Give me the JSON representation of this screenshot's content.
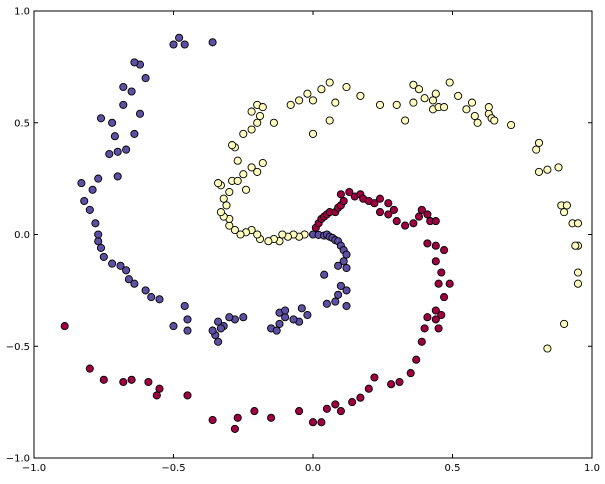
{
  "chart_data": {
    "type": "scatter",
    "title": "",
    "xlabel": "",
    "ylabel": "",
    "xlim": [
      -1.0,
      1.0
    ],
    "ylim": [
      -1.0,
      1.0
    ],
    "xticks": [
      "−1.0",
      "−0.5",
      "0.0",
      "0.5",
      "1.0"
    ],
    "xtick_values": [
      -1.0,
      -0.5,
      0.0,
      0.5,
      1.0
    ],
    "yticks": [
      "−1.0",
      "−0.5",
      "0.0",
      "0.5",
      "1.0"
    ],
    "ytick_values": [
      -1.0,
      -0.5,
      0.0,
      0.5,
      1.0
    ],
    "grid": false,
    "marker_edge_color": "#000000",
    "series": [
      {
        "color": "#5e4fa2",
        "points": [
          [
            0.0,
            0.0
          ],
          [
            0.02,
            -0.002
          ],
          [
            0.04,
            -0.005
          ],
          [
            0.05,
            0.0
          ],
          [
            0.06,
            -0.01
          ],
          [
            0.07,
            -0.015
          ],
          [
            0.08,
            -0.025
          ],
          [
            0.09,
            -0.03
          ],
          [
            0.1,
            -0.05
          ],
          [
            0.11,
            -0.07
          ],
          [
            0.12,
            -0.09
          ],
          [
            0.11,
            -0.12
          ],
          [
            0.12,
            -0.15
          ],
          [
            0.09,
            -0.14
          ],
          [
            0.04,
            -0.18
          ],
          [
            0.1,
            -0.23
          ],
          [
            0.12,
            -0.25
          ],
          [
            0.09,
            -0.27
          ],
          [
            0.08,
            -0.3
          ],
          [
            0.12,
            -0.32
          ],
          [
            0.05,
            -0.31
          ],
          [
            -0.04,
            -0.33
          ],
          [
            -0.02,
            -0.36
          ],
          [
            -0.05,
            -0.39
          ],
          [
            -0.1,
            -0.37
          ],
          [
            -0.12,
            -0.4
          ],
          [
            -0.15,
            -0.42
          ],
          [
            -0.12,
            -0.35
          ],
          [
            -0.1,
            -0.34
          ],
          [
            -0.07,
            -0.38
          ],
          [
            -0.13,
            -0.43
          ],
          [
            -0.25,
            -0.37
          ],
          [
            -0.28,
            -0.38
          ],
          [
            -0.3,
            -0.37
          ],
          [
            -0.32,
            -0.41
          ],
          [
            -0.34,
            -0.39
          ],
          [
            -0.33,
            -0.42
          ],
          [
            -0.35,
            -0.45
          ],
          [
            -0.34,
            -0.48
          ],
          [
            -0.36,
            -0.43
          ],
          [
            -0.45,
            -0.38
          ],
          [
            -0.45,
            -0.43
          ],
          [
            -0.5,
            -0.41
          ],
          [
            -0.46,
            -0.32
          ],
          [
            -0.55,
            -0.29
          ],
          [
            -0.58,
            -0.28
          ],
          [
            -0.6,
            -0.25
          ],
          [
            -0.64,
            -0.22
          ],
          [
            -0.66,
            -0.2
          ],
          [
            -0.67,
            -0.16
          ],
          [
            -0.69,
            -0.14
          ],
          [
            -0.72,
            -0.13
          ],
          [
            -0.75,
            -0.1
          ],
          [
            -0.76,
            -0.06
          ],
          [
            -0.77,
            -0.03
          ],
          [
            -0.77,
            0.0
          ],
          [
            -0.78,
            0.05
          ],
          [
            -0.8,
            0.11
          ],
          [
            -0.82,
            0.15
          ],
          [
            -0.83,
            0.23
          ],
          [
            -0.77,
            0.25
          ],
          [
            -0.79,
            0.2
          ],
          [
            -0.7,
            0.26
          ],
          [
            -0.7,
            0.37
          ],
          [
            -0.73,
            0.36
          ],
          [
            -0.67,
            0.38
          ],
          [
            -0.71,
            0.44
          ],
          [
            -0.64,
            0.45
          ],
          [
            -0.72,
            0.5
          ],
          [
            -0.76,
            0.52
          ],
          [
            -0.62,
            0.54
          ],
          [
            -0.68,
            0.58
          ],
          [
            -0.65,
            0.64
          ],
          [
            -0.6,
            0.7
          ],
          [
            -0.68,
            0.66
          ],
          [
            -0.62,
            0.76
          ],
          [
            -0.64,
            0.77
          ],
          [
            -0.5,
            0.85
          ],
          [
            -0.48,
            0.88
          ],
          [
            -0.46,
            0.85
          ],
          [
            -0.36,
            0.86
          ]
        ]
      },
      {
        "color": "#fefebe",
        "points": [
          [
            -0.03,
            0.0
          ],
          [
            -0.05,
            -0.01
          ],
          [
            -0.07,
            0.0
          ],
          [
            -0.09,
            -0.01
          ],
          [
            -0.11,
            0.0
          ],
          [
            -0.12,
            -0.03
          ],
          [
            -0.14,
            -0.02
          ],
          [
            -0.16,
            -0.03
          ],
          [
            -0.19,
            -0.02
          ],
          [
            -0.2,
            0.0
          ],
          [
            -0.22,
            0.02
          ],
          [
            -0.24,
            0.01
          ],
          [
            -0.26,
            0.0
          ],
          [
            -0.28,
            0.02
          ],
          [
            -0.3,
            0.04
          ],
          [
            -0.3,
            0.07
          ],
          [
            -0.32,
            0.08
          ],
          [
            -0.33,
            0.1
          ],
          [
            -0.31,
            0.13
          ],
          [
            -0.32,
            0.16
          ],
          [
            -0.3,
            0.19
          ],
          [
            -0.29,
            0.24
          ],
          [
            -0.33,
            0.22
          ],
          [
            -0.34,
            0.23
          ],
          [
            -0.27,
            0.24
          ],
          [
            -0.24,
            0.2
          ],
          [
            -0.25,
            0.27
          ],
          [
            -0.2,
            0.28
          ],
          [
            -0.22,
            0.3
          ],
          [
            -0.18,
            0.32
          ],
          [
            -0.27,
            0.33
          ],
          [
            -0.28,
            0.39
          ],
          [
            -0.29,
            0.4
          ],
          [
            -0.25,
            0.45
          ],
          [
            -0.22,
            0.47
          ],
          [
            -0.2,
            0.5
          ],
          [
            -0.19,
            0.53
          ],
          [
            -0.14,
            0.5
          ],
          [
            -0.22,
            0.55
          ],
          [
            -0.2,
            0.58
          ],
          [
            -0.18,
            0.57
          ],
          [
            -0.08,
            0.58
          ],
          [
            -0.05,
            0.6
          ],
          [
            -0.02,
            0.63
          ],
          [
            0.0,
            0.6
          ],
          [
            0.03,
            0.65
          ],
          [
            0.06,
            0.68
          ],
          [
            0.12,
            0.66
          ],
          [
            0.08,
            0.59
          ],
          [
            0.17,
            0.62
          ],
          [
            0.06,
            0.51
          ],
          [
            0.0,
            0.45
          ],
          [
            0.24,
            0.58
          ],
          [
            0.3,
            0.58
          ],
          [
            0.33,
            0.51
          ],
          [
            0.36,
            0.59
          ],
          [
            0.36,
            0.67
          ],
          [
            0.38,
            0.65
          ],
          [
            0.4,
            0.61
          ],
          [
            0.43,
            0.56
          ],
          [
            0.43,
            0.6
          ],
          [
            0.45,
            0.57
          ],
          [
            0.44,
            0.63
          ],
          [
            0.47,
            0.57
          ],
          [
            0.49,
            0.68
          ],
          [
            0.52,
            0.62
          ],
          [
            0.55,
            0.56
          ],
          [
            0.57,
            0.59
          ],
          [
            0.58,
            0.53
          ],
          [
            0.59,
            0.5
          ],
          [
            0.63,
            0.54
          ],
          [
            0.63,
            0.57
          ],
          [
            0.64,
            0.52
          ],
          [
            0.65,
            0.51
          ],
          [
            0.71,
            0.49
          ],
          [
            0.81,
            0.41
          ],
          [
            0.8,
            0.38
          ],
          [
            0.81,
            0.28
          ],
          [
            0.84,
            0.29
          ],
          [
            0.88,
            0.3
          ],
          [
            0.89,
            0.13
          ],
          [
            0.9,
            0.1
          ],
          [
            0.91,
            0.13
          ],
          [
            0.93,
            0.05
          ],
          [
            0.95,
            0.05
          ],
          [
            0.95,
            -0.05
          ],
          [
            0.94,
            -0.05
          ],
          [
            0.95,
            -0.17
          ],
          [
            0.95,
            -0.22
          ],
          [
            0.9,
            -0.4
          ],
          [
            0.84,
            -0.51
          ]
        ]
      },
      {
        "color": "#9e0142",
        "points": [
          [
            0.01,
            0.03
          ],
          [
            0.02,
            0.05
          ],
          [
            0.03,
            0.07
          ],
          [
            0.04,
            0.08
          ],
          [
            0.05,
            0.09
          ],
          [
            0.06,
            0.1
          ],
          [
            0.08,
            0.1
          ],
          [
            0.09,
            0.12
          ],
          [
            0.1,
            0.13
          ],
          [
            0.11,
            0.15
          ],
          [
            0.1,
            0.18
          ],
          [
            0.13,
            0.19
          ],
          [
            0.15,
            0.17
          ],
          [
            0.17,
            0.18
          ],
          [
            0.18,
            0.16
          ],
          [
            0.2,
            0.15
          ],
          [
            0.22,
            0.14
          ],
          [
            0.24,
            0.16
          ],
          [
            0.27,
            0.14
          ],
          [
            0.29,
            0.11
          ],
          [
            0.27,
            0.09
          ],
          [
            0.24,
            0.1
          ],
          [
            0.3,
            0.06
          ],
          [
            0.33,
            0.04
          ],
          [
            0.36,
            0.05
          ],
          [
            0.38,
            0.08
          ],
          [
            0.39,
            0.11
          ],
          [
            0.41,
            0.09
          ],
          [
            0.42,
            0.06
          ],
          [
            0.44,
            0.06
          ],
          [
            0.41,
            -0.04
          ],
          [
            0.44,
            -0.05
          ],
          [
            0.47,
            -0.07
          ],
          [
            0.44,
            -0.12
          ],
          [
            0.46,
            -0.17
          ],
          [
            0.45,
            -0.22
          ],
          [
            0.49,
            -0.22
          ],
          [
            0.47,
            -0.28
          ],
          [
            0.44,
            -0.34
          ],
          [
            0.41,
            -0.37
          ],
          [
            0.44,
            -0.38
          ],
          [
            0.46,
            -0.36
          ],
          [
            0.4,
            -0.42
          ],
          [
            0.45,
            -0.42
          ],
          [
            0.39,
            -0.48
          ],
          [
            0.37,
            -0.56
          ],
          [
            0.35,
            -0.62
          ],
          [
            0.31,
            -0.66
          ],
          [
            0.28,
            -0.67
          ],
          [
            0.22,
            -0.64
          ],
          [
            0.2,
            -0.69
          ],
          [
            0.17,
            -0.73
          ],
          [
            0.14,
            -0.75
          ],
          [
            0.1,
            -0.79
          ],
          [
            0.08,
            -0.76
          ],
          [
            0.05,
            -0.78
          ],
          [
            0.03,
            -0.84
          ],
          [
            0.0,
            -0.84
          ],
          [
            -0.05,
            -0.79
          ],
          [
            -0.15,
            -0.82
          ],
          [
            -0.21,
            -0.79
          ],
          [
            -0.27,
            -0.82
          ],
          [
            -0.28,
            -0.87
          ],
          [
            -0.36,
            -0.83
          ],
          [
            -0.45,
            -0.72
          ],
          [
            -0.55,
            -0.69
          ],
          [
            -0.56,
            -0.72
          ],
          [
            -0.59,
            -0.66
          ],
          [
            -0.65,
            -0.65
          ],
          [
            -0.68,
            -0.66
          ],
          [
            -0.75,
            -0.65
          ],
          [
            -0.8,
            -0.6
          ],
          [
            -0.89,
            -0.41
          ]
        ]
      }
    ]
  }
}
